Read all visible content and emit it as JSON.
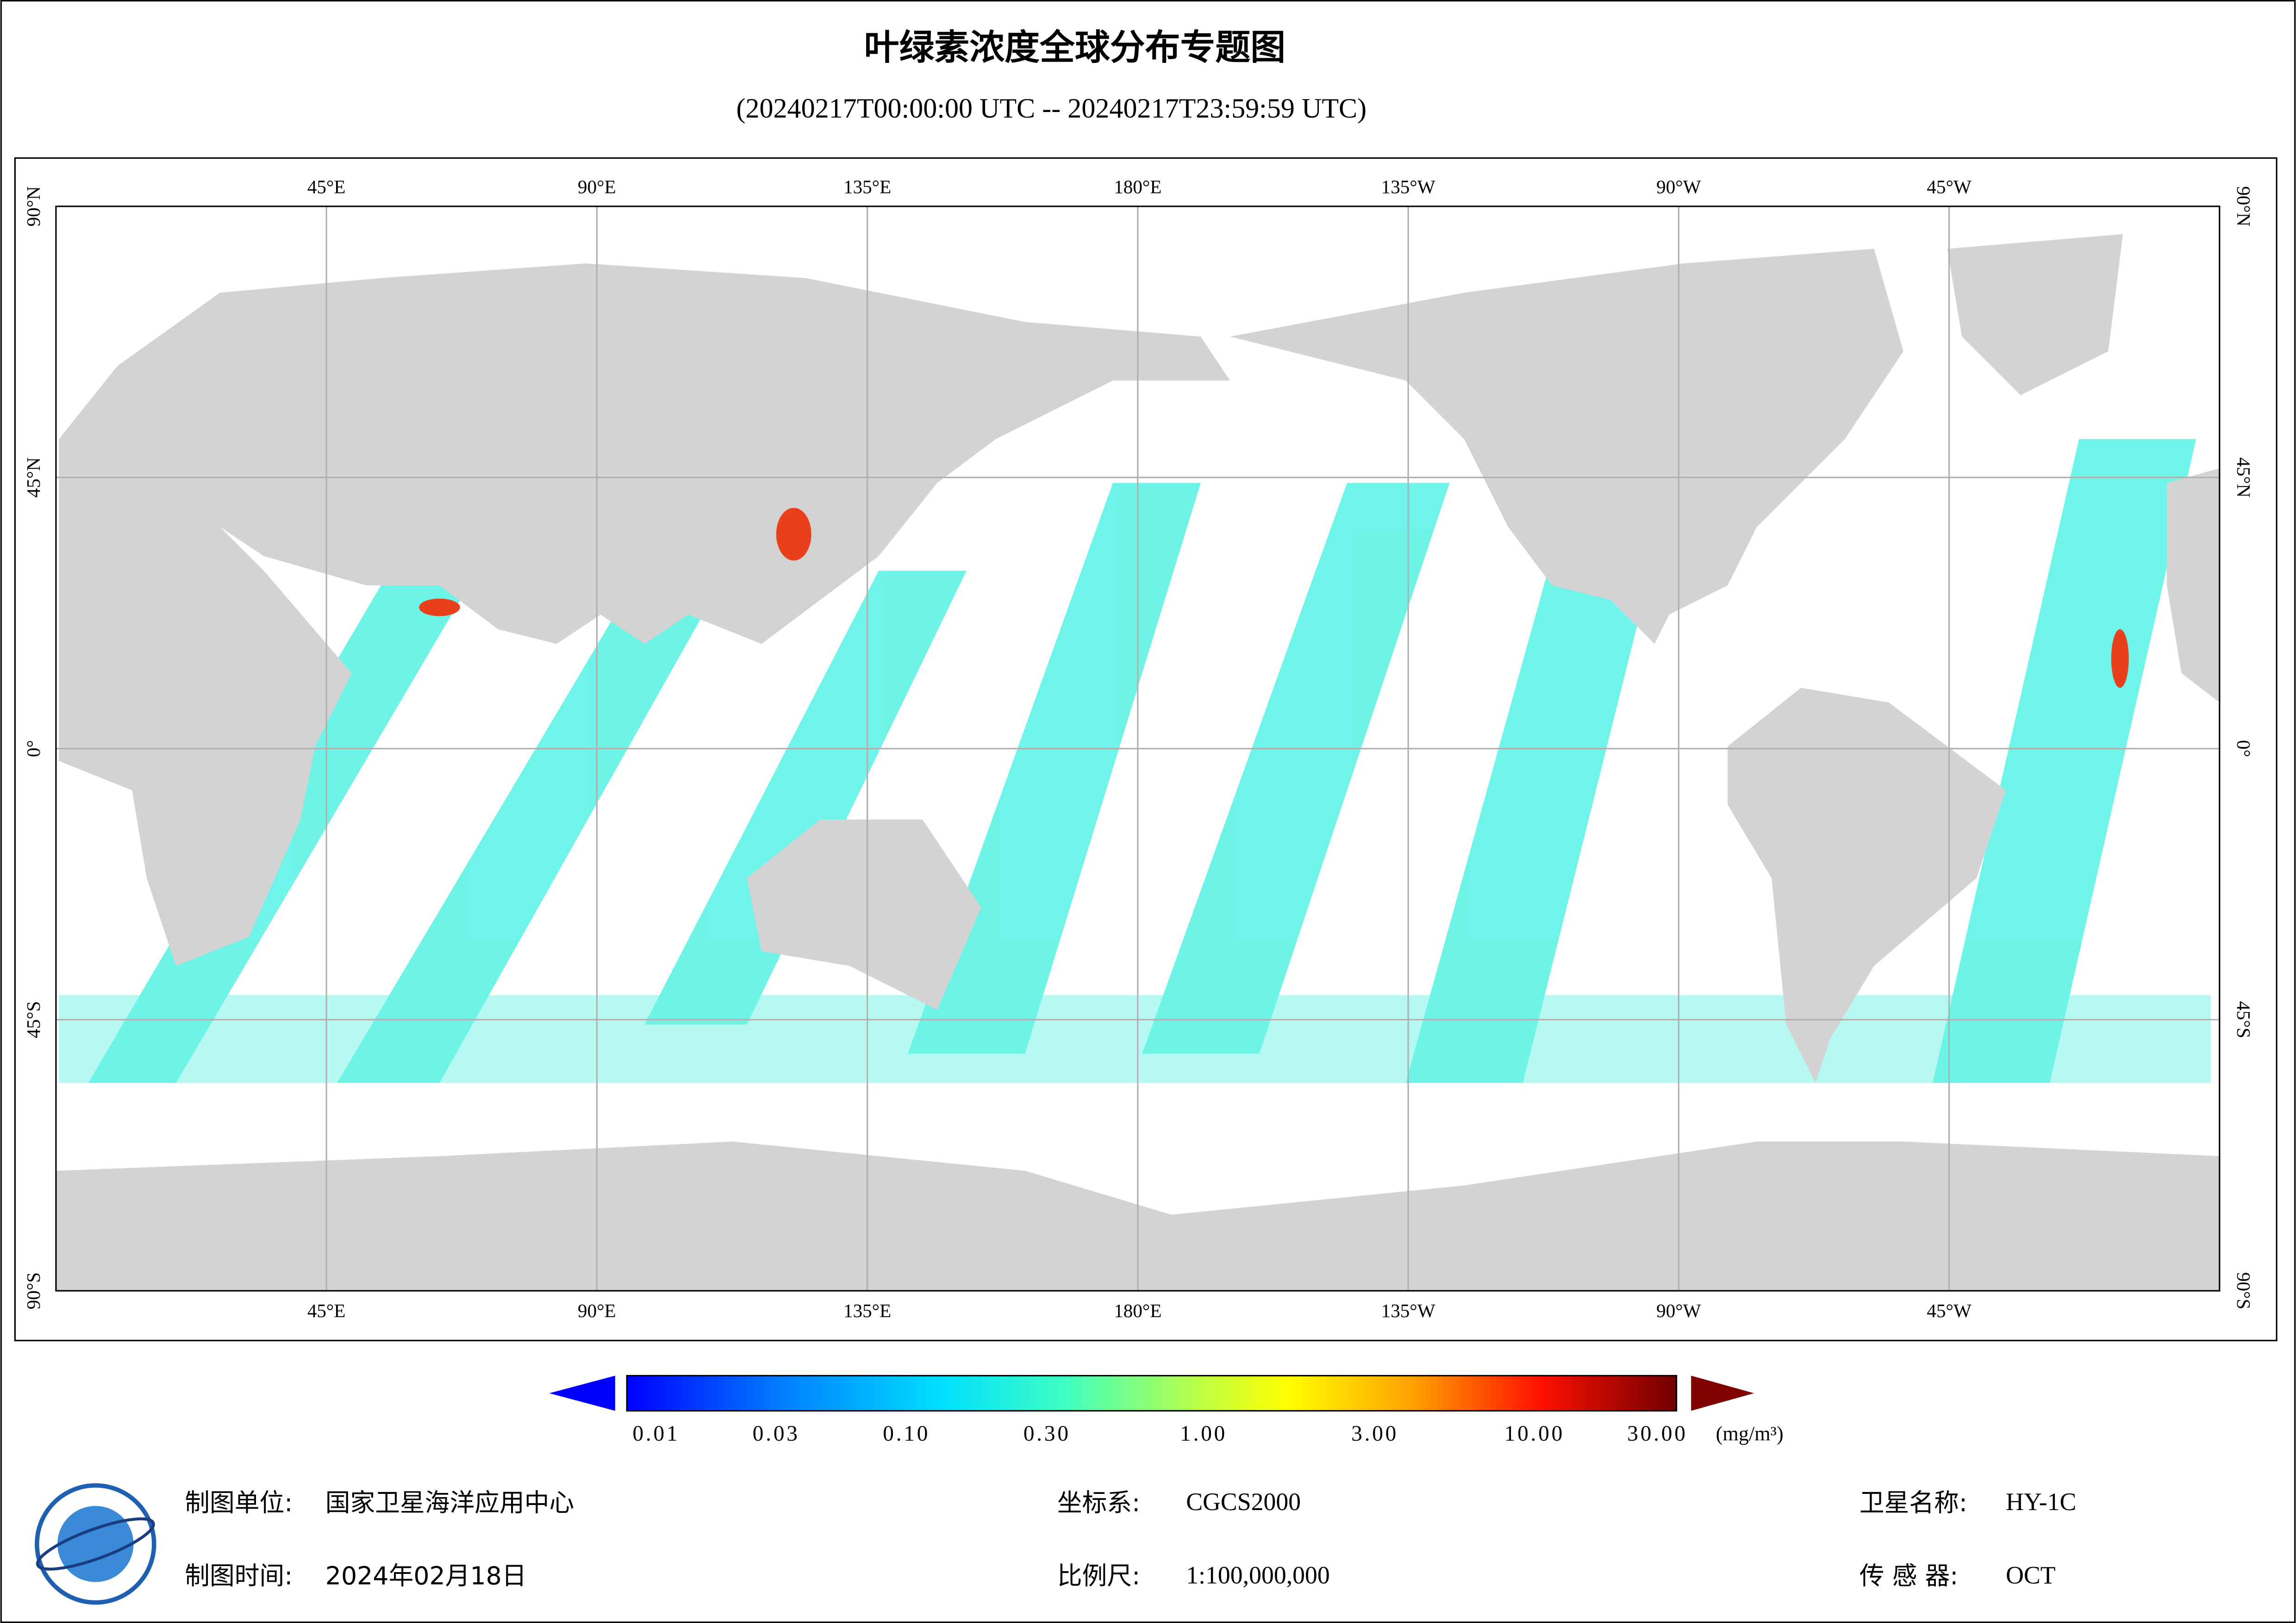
{
  "title": "叶绿素浓度全球分布专题图",
  "subtitle": "(20240217T00:00:00 UTC -- 20240217T23:59:59 UTC)",
  "map": {
    "lon_labels": [
      "45°E",
      "90°E",
      "135°E",
      "180°E",
      "135°W",
      "90°W",
      "45°W"
    ],
    "lat_labels": [
      "90°N",
      "45°N",
      "0°",
      "45°S",
      "90°S"
    ]
  },
  "colorbar": {
    "labels": [
      "0.01",
      "0.03",
      "0.10",
      "0.30",
      "1.00",
      "3.00",
      "10.00",
      "30.00"
    ],
    "unit": "(mg/m³)"
  },
  "footer": {
    "producer_label": "制图单位:",
    "producer": "国家卫星海洋应用中心",
    "time_label": "制图时间:",
    "time": "2024年02月18日",
    "crs_label": "坐标系:",
    "crs": "CGCS2000",
    "scale_label": "比例尺:",
    "scale": "1:100,000,000",
    "satellite_label": "卫星名称:",
    "satellite": "HY-1C",
    "sensor_label": "传 感 器:",
    "sensor": "OCT"
  }
}
